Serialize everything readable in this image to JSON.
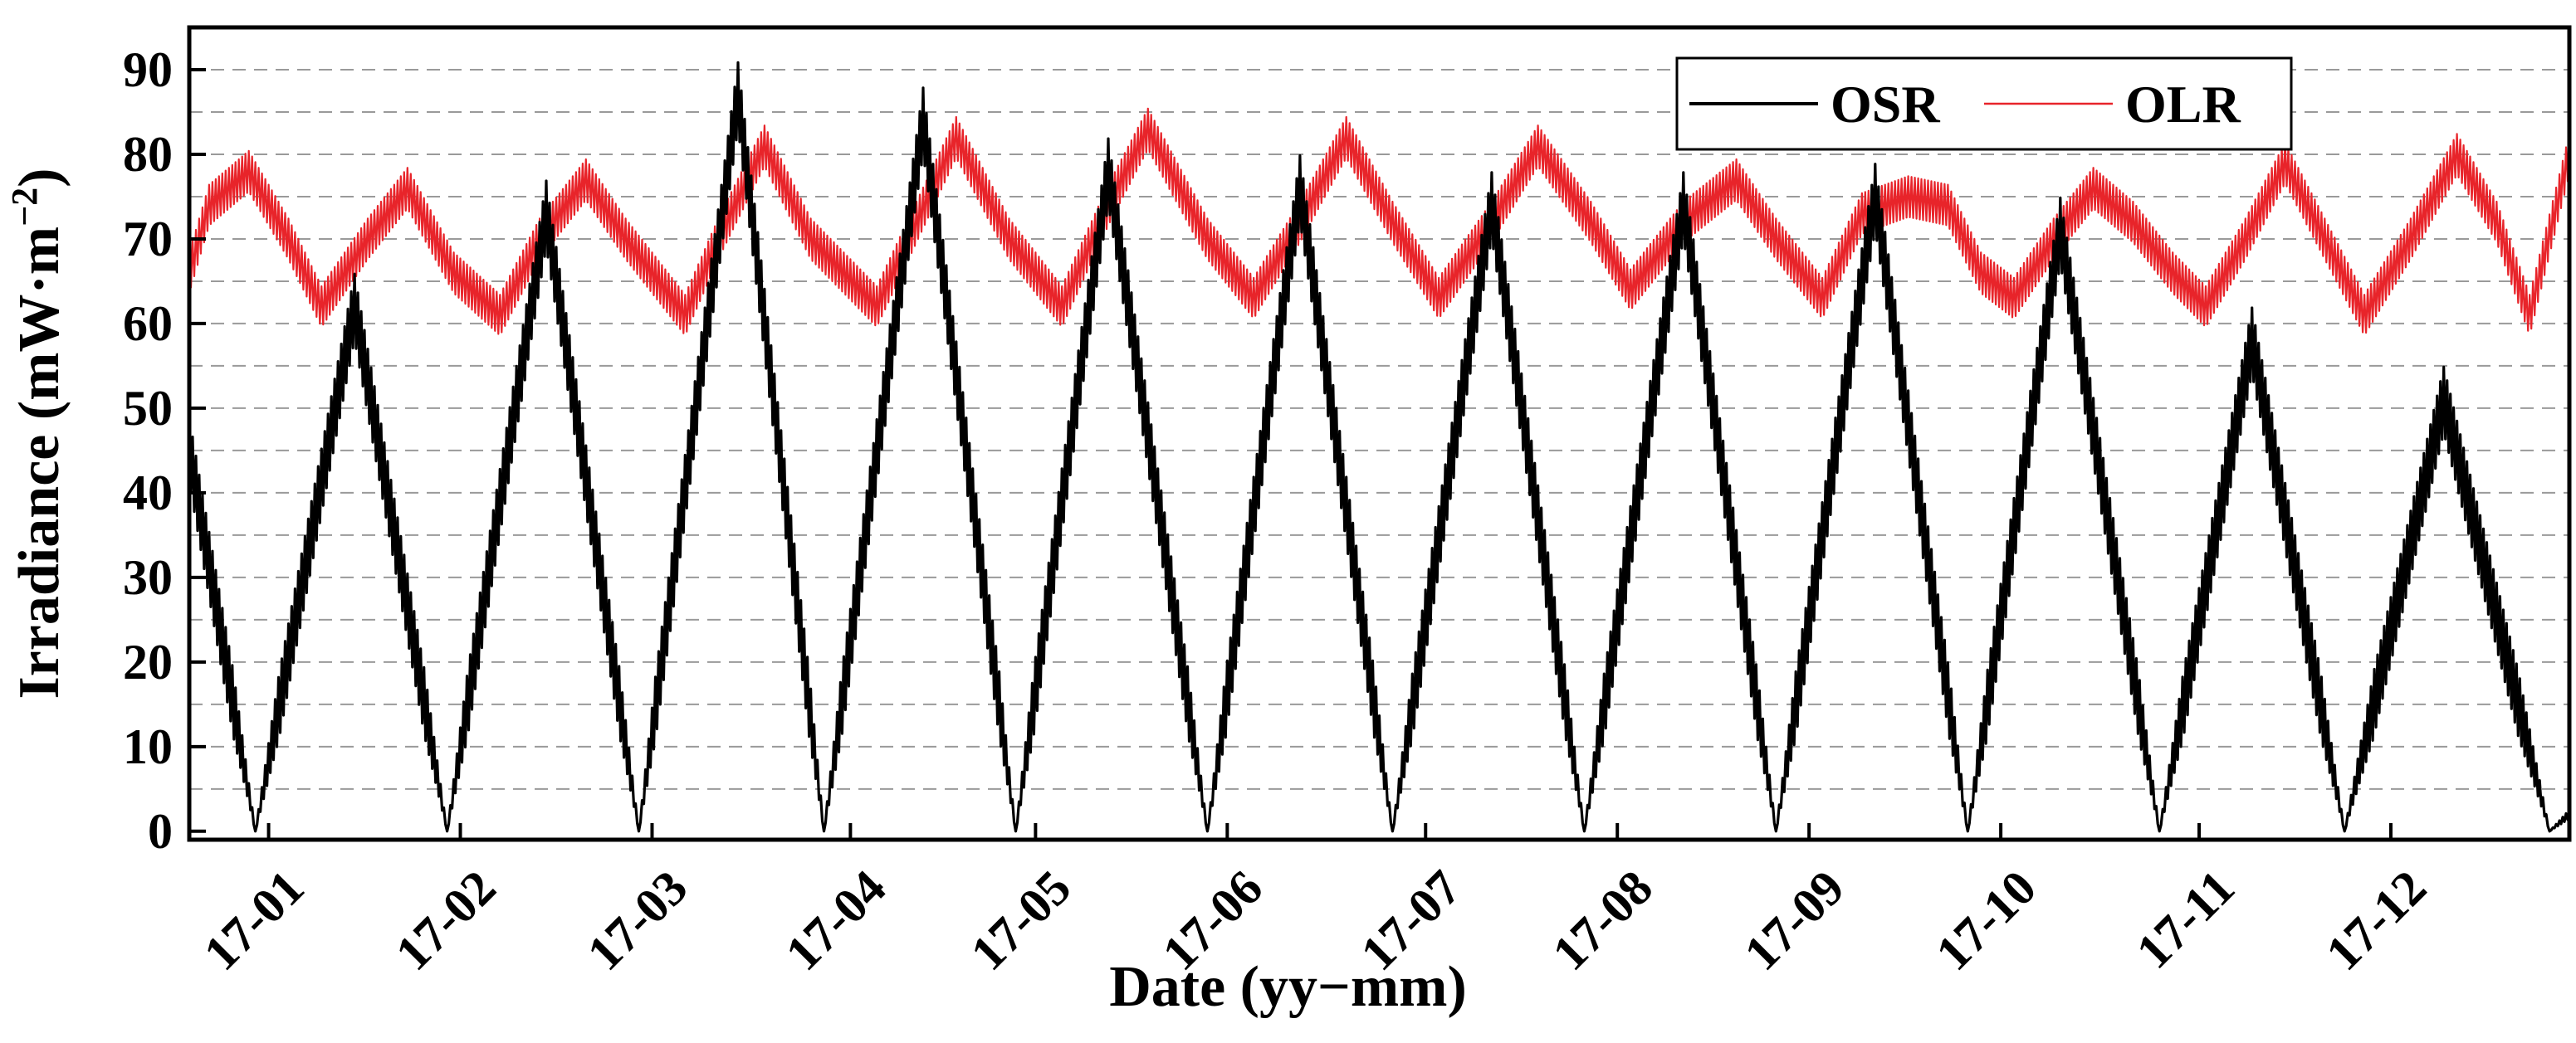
{
  "chart_data": {
    "type": "line",
    "title": "",
    "xlabel": "Date (yy−mm)",
    "ylabel": "Irradiance (mW·m⁻²)",
    "ylabel_parts": {
      "main": "Irradiance (mW·m",
      "sup": "−2",
      "close": ")"
    },
    "ylim": [
      -1,
      95
    ],
    "yticks": [
      0,
      10,
      20,
      30,
      40,
      50,
      60,
      70,
      80,
      90
    ],
    "xlim_days": [
      0,
      360
    ],
    "grid": true,
    "legend_position": "top-right",
    "xtick_labels": [
      "17-01",
      "17-02",
      "17-03",
      "17-04",
      "17-05",
      "17-06",
      "17-07",
      "17-08",
      "17-09",
      "17-10",
      "17-11",
      "17-12"
    ],
    "xtick_days": [
      12,
      41,
      70,
      100,
      128,
      157,
      187,
      216,
      245,
      274,
      304,
      333
    ],
    "series": [
      {
        "name": "OSR",
        "color": "#000000",
        "oscillation_amplitude": 4,
        "points": [
          {
            "day": 0,
            "value": 45
          },
          {
            "day": 10,
            "value": 0
          },
          {
            "day": 25,
            "value": 62
          },
          {
            "day": 39,
            "value": 0
          },
          {
            "day": 54,
            "value": 73
          },
          {
            "day": 68,
            "value": 0
          },
          {
            "day": 83,
            "value": 87
          },
          {
            "day": 96,
            "value": 0
          },
          {
            "day": 111,
            "value": 84
          },
          {
            "day": 125,
            "value": 0
          },
          {
            "day": 139,
            "value": 78
          },
          {
            "day": 154,
            "value": 0
          },
          {
            "day": 168,
            "value": 76
          },
          {
            "day": 182,
            "value": 0
          },
          {
            "day": 197,
            "value": 74
          },
          {
            "day": 211,
            "value": 0
          },
          {
            "day": 226,
            "value": 74
          },
          {
            "day": 240,
            "value": 0
          },
          {
            "day": 255,
            "value": 75
          },
          {
            "day": 269,
            "value": 0
          },
          {
            "day": 283,
            "value": 71
          },
          {
            "day": 298,
            "value": 0
          },
          {
            "day": 312,
            "value": 58
          },
          {
            "day": 326,
            "value": 0
          },
          {
            "day": 341,
            "value": 51
          },
          {
            "day": 357,
            "value": 0
          },
          {
            "day": 360,
            "value": 2
          }
        ]
      },
      {
        "name": "OLR",
        "color": "#e8242a",
        "oscillation_amplitude": 2.5,
        "points": [
          {
            "day": 0,
            "value": 66
          },
          {
            "day": 3,
            "value": 74
          },
          {
            "day": 9,
            "value": 78
          },
          {
            "day": 15,
            "value": 70
          },
          {
            "day": 20,
            "value": 62
          },
          {
            "day": 27,
            "value": 70
          },
          {
            "day": 33,
            "value": 76
          },
          {
            "day": 40,
            "value": 66
          },
          {
            "day": 47,
            "value": 61
          },
          {
            "day": 53,
            "value": 70
          },
          {
            "day": 60,
            "value": 77
          },
          {
            "day": 66,
            "value": 70
          },
          {
            "day": 75,
            "value": 61
          },
          {
            "day": 80,
            "value": 70
          },
          {
            "day": 87,
            "value": 81
          },
          {
            "day": 94,
            "value": 70
          },
          {
            "day": 104,
            "value": 62
          },
          {
            "day": 110,
            "value": 72
          },
          {
            "day": 116,
            "value": 82
          },
          {
            "day": 124,
            "value": 70
          },
          {
            "day": 132,
            "value": 62
          },
          {
            "day": 139,
            "value": 74
          },
          {
            "day": 145,
            "value": 83
          },
          {
            "day": 154,
            "value": 70
          },
          {
            "day": 161,
            "value": 63
          },
          {
            "day": 168,
            "value": 72
          },
          {
            "day": 175,
            "value": 82
          },
          {
            "day": 182,
            "value": 72
          },
          {
            "day": 189,
            "value": 63
          },
          {
            "day": 197,
            "value": 72
          },
          {
            "day": 204,
            "value": 81
          },
          {
            "day": 212,
            "value": 72
          },
          {
            "day": 218,
            "value": 64
          },
          {
            "day": 226,
            "value": 72
          },
          {
            "day": 234,
            "value": 77
          },
          {
            "day": 240,
            "value": 70
          },
          {
            "day": 247,
            "value": 63
          },
          {
            "day": 253,
            "value": 73
          },
          {
            "day": 260,
            "value": 75
          },
          {
            "day": 266,
            "value": 74
          },
          {
            "day": 271,
            "value": 66
          },
          {
            "day": 276,
            "value": 63
          },
          {
            "day": 282,
            "value": 70
          },
          {
            "day": 288,
            "value": 76
          },
          {
            "day": 294,
            "value": 72
          },
          {
            "day": 300,
            "value": 66
          },
          {
            "day": 305,
            "value": 62
          },
          {
            "day": 311,
            "value": 70
          },
          {
            "day": 317,
            "value": 79
          },
          {
            "day": 323,
            "value": 70
          },
          {
            "day": 329,
            "value": 61
          },
          {
            "day": 336,
            "value": 70
          },
          {
            "day": 343,
            "value": 80
          },
          {
            "day": 349,
            "value": 72
          },
          {
            "day": 354,
            "value": 61
          },
          {
            "day": 360,
            "value": 80
          }
        ]
      }
    ]
  }
}
